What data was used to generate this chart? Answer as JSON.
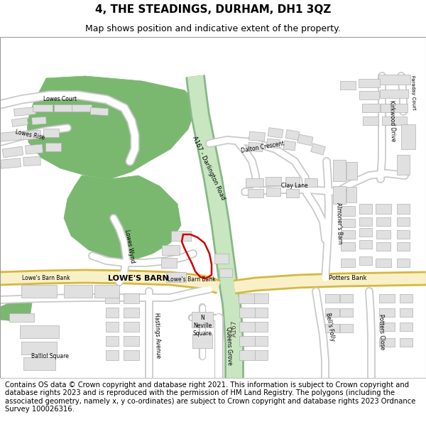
{
  "title": "4, THE STEADINGS, DURHAM, DH1 3QZ",
  "subtitle": "Map shows position and indicative extent of the property.",
  "footer": "Contains OS data © Crown copyright and database right 2021. This information is subject to Crown copyright and database rights 2023 and is reproduced with the permission of HM Land Registry. The polygons (including the associated geometry, namely x, y co-ordinates) are subject to Crown copyright and database rights 2023 Ordnance Survey 100026316.",
  "bg_color": "#f0eeeb",
  "road_white": "#ffffff",
  "road_outline": "#c8c8c8",
  "major_road_fill": "#faf0c8",
  "major_road_edge": "#d4b840",
  "green_dark": "#7ab870",
  "green_light": "#c8e6c0",
  "plot_red": "#cc0000",
  "bld_fill": "#e0e0e0",
  "bld_edge": "#b0b0b0",
  "title_fs": 11,
  "subtitle_fs": 9,
  "footer_fs": 7.2,
  "label_fs": 6.0,
  "label_sm": 5.0
}
